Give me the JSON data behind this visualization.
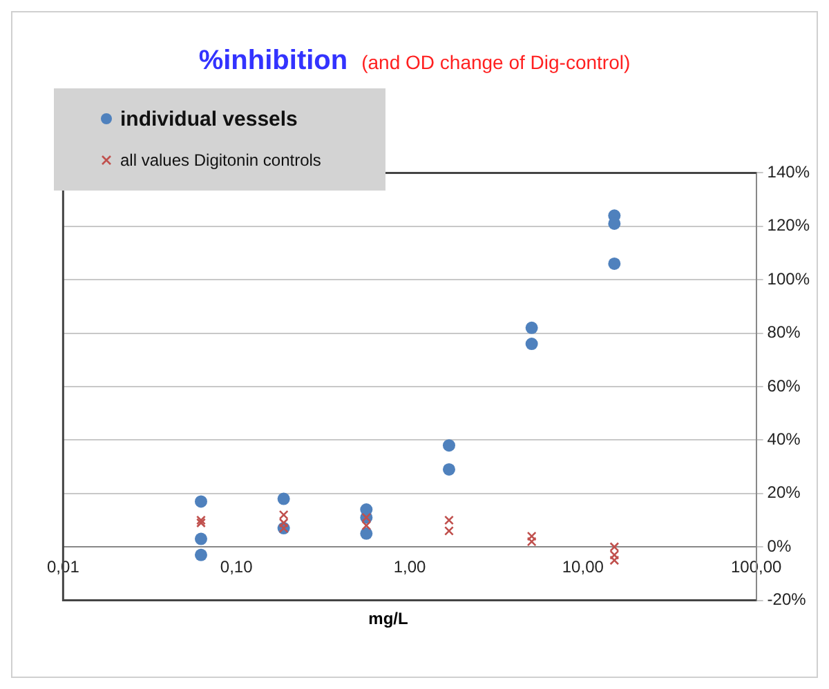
{
  "chart_data": {
    "type": "scatter",
    "title": "%inhibition",
    "subtitle": "(and OD change of Dig-control)",
    "xlabel": "mg/L",
    "log": "x",
    "grid": "y",
    "legend": "top left",
    "xlim": [
      0.01,
      100
    ],
    "xticks": [
      {
        "value": 0.01,
        "label": "0,01"
      },
      {
        "value": 0.1,
        "label": "0,10"
      },
      {
        "value": 1,
        "label": "1,00"
      },
      {
        "value": 10,
        "label": "10,00"
      },
      {
        "value": 100,
        "label": "100,00"
      }
    ],
    "ylim": [
      -20,
      140
    ],
    "yticks": [
      {
        "value": -20,
        "label": "-20%"
      },
      {
        "value": 0,
        "label": "0%"
      },
      {
        "value": 20,
        "label": "20%"
      },
      {
        "value": 40,
        "label": "40%"
      },
      {
        "value": 60,
        "label": "60%"
      },
      {
        "value": 80,
        "label": "80%"
      },
      {
        "value": 100,
        "label": "100%"
      },
      {
        "value": 120,
        "label": "120%"
      },
      {
        "value": 140,
        "label": "140%"
      }
    ],
    "series": [
      {
        "name": "individual vessels",
        "color": "#4f81bd",
        "marker": "circle",
        "x": [
          0.0625,
          0.0625,
          0.0625,
          0.1875,
          0.1875,
          0.5625,
          0.5625,
          0.5625,
          1.6875,
          1.6875,
          5.0625,
          5.0625,
          15.1875,
          15.1875,
          15.1875
        ],
        "values": [
          17,
          3,
          -3,
          18,
          7,
          14,
          11,
          5,
          38,
          29,
          82,
          76,
          124,
          121,
          106
        ]
      },
      {
        "name": "all values Digitonin controls",
        "color": "#c0504d",
        "marker": "cross",
        "x": [
          0.0625,
          0.0625,
          0.1875,
          0.1875,
          0.1875,
          0.5625,
          0.5625,
          1.6875,
          1.6875,
          5.0625,
          5.0625,
          15.1875,
          15.1875,
          15.1875
        ],
        "values": [
          10,
          9,
          12,
          9,
          7,
          11,
          8,
          10,
          6,
          4,
          2,
          0,
          -3,
          -5
        ]
      }
    ]
  }
}
